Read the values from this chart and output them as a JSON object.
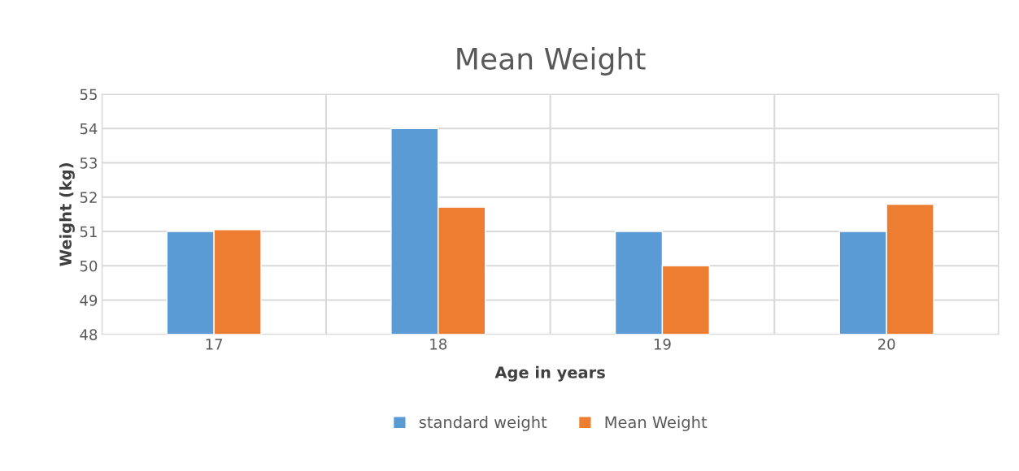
{
  "chart_data": {
    "type": "bar",
    "title": "Mean Weight",
    "xlabel": "Age in years",
    "ylabel": "Weight (kg)",
    "categories": [
      "17",
      "18",
      "19",
      "20"
    ],
    "series": [
      {
        "name": "standard weight",
        "color": "#5b9bd5",
        "values": [
          51,
          54,
          51,
          51
        ]
      },
      {
        "name": "Mean Weight",
        "color": "#ed7d31",
        "values": [
          51.05,
          51.71,
          50.0,
          51.79
        ]
      }
    ],
    "ylim": [
      48,
      55
    ],
    "yticks": [
      48,
      49,
      50,
      51,
      52,
      53,
      54,
      55
    ],
    "grid": true,
    "legend": "bottom"
  }
}
